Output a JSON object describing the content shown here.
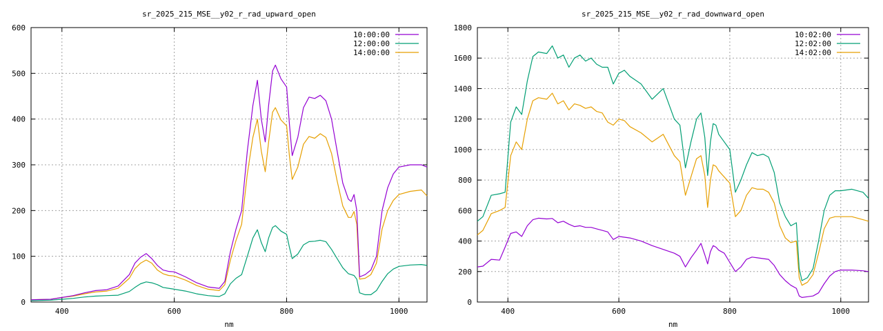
{
  "chart_data": [
    {
      "type": "line",
      "title": "sr_2025_215_MSE__y02_r_rad_upward_open",
      "xlabel": "nm",
      "ylabel": "",
      "xlim": [
        345,
        1050
      ],
      "ylim": [
        0,
        600
      ],
      "xticks": [
        400,
        600,
        800,
        1000
      ],
      "yticks": [
        0,
        100,
        200,
        300,
        400,
        500,
        600
      ],
      "grid": true,
      "legend_position": "top-right",
      "series": [
        {
          "name": "10:00:00",
          "color": "#9400d3",
          "x": [
            345,
            380,
            400,
            420,
            440,
            460,
            480,
            500,
            520,
            530,
            540,
            550,
            560,
            570,
            580,
            590,
            600,
            620,
            640,
            660,
            680,
            690,
            700,
            710,
            720,
            730,
            740,
            748,
            755,
            762,
            768,
            775,
            780,
            790,
            800,
            805,
            810,
            820,
            830,
            840,
            850,
            860,
            870,
            880,
            890,
            900,
            910,
            915,
            920,
            925,
            930,
            940,
            950,
            960,
            970,
            980,
            990,
            1000,
            1020,
            1040,
            1050
          ],
          "y": [
            5,
            6,
            10,
            14,
            20,
            25,
            27,
            35,
            60,
            85,
            98,
            106,
            95,
            80,
            70,
            67,
            66,
            55,
            42,
            33,
            30,
            45,
            110,
            160,
            200,
            330,
            430,
            485,
            400,
            350,
            430,
            505,
            518,
            488,
            470,
            390,
            320,
            360,
            425,
            448,
            445,
            452,
            440,
            400,
            330,
            260,
            225,
            220,
            235,
            200,
            55,
            60,
            70,
            100,
            200,
            250,
            280,
            295,
            300,
            300,
            295
          ]
        },
        {
          "name": "12:00:00",
          "color": "#009e73",
          "x": [
            345,
            380,
            400,
            420,
            440,
            460,
            480,
            500,
            520,
            530,
            540,
            550,
            560,
            570,
            580,
            590,
            600,
            620,
            640,
            660,
            680,
            690,
            700,
            710,
            720,
            730,
            740,
            748,
            755,
            762,
            768,
            775,
            780,
            790,
            800,
            805,
            810,
            820,
            830,
            840,
            850,
            860,
            870,
            880,
            890,
            900,
            910,
            915,
            920,
            925,
            930,
            940,
            950,
            960,
            970,
            980,
            990,
            1000,
            1020,
            1040,
            1050
          ],
          "y": [
            3,
            4,
            6,
            8,
            11,
            13,
            14,
            15,
            23,
            32,
            40,
            44,
            42,
            38,
            32,
            30,
            28,
            24,
            18,
            14,
            12,
            18,
            40,
            52,
            60,
            100,
            140,
            158,
            130,
            110,
            140,
            163,
            167,
            155,
            148,
            120,
            95,
            105,
            125,
            132,
            133,
            135,
            132,
            115,
            95,
            75,
            62,
            60,
            58,
            50,
            20,
            16,
            16,
            25,
            45,
            62,
            72,
            78,
            81,
            82,
            80
          ]
        },
        {
          "name": "14:00:00",
          "color": "#e69f00",
          "x": [
            345,
            380,
            400,
            420,
            440,
            460,
            480,
            500,
            520,
            530,
            540,
            550,
            560,
            570,
            580,
            590,
            600,
            620,
            640,
            660,
            680,
            690,
            700,
            710,
            720,
            730,
            740,
            748,
            755,
            762,
            768,
            775,
            780,
            790,
            800,
            805,
            810,
            820,
            830,
            840,
            850,
            860,
            870,
            880,
            890,
            900,
            910,
            915,
            920,
            925,
            930,
            940,
            950,
            960,
            970,
            980,
            990,
            1000,
            1020,
            1040,
            1050
          ],
          "y": [
            5,
            6,
            10,
            13,
            18,
            22,
            24,
            30,
            52,
            73,
            85,
            92,
            85,
            70,
            62,
            58,
            57,
            48,
            36,
            28,
            25,
            38,
            92,
            135,
            170,
            280,
            360,
            400,
            330,
            285,
            350,
            415,
            425,
            398,
            385,
            320,
            268,
            295,
            345,
            362,
            358,
            368,
            360,
            325,
            265,
            210,
            185,
            185,
            198,
            170,
            50,
            52,
            60,
            85,
            160,
            200,
            222,
            235,
            242,
            245,
            232
          ]
        }
      ]
    },
    {
      "type": "line",
      "title": "sr_2025_215_MSE__y02_r_rad_downward_open",
      "xlabel": "nm",
      "ylabel": "",
      "xlim": [
        345,
        1050
      ],
      "ylim": [
        0,
        1800
      ],
      "xticks": [
        400,
        600,
        800,
        1000
      ],
      "yticks": [
        0,
        200,
        400,
        600,
        800,
        1000,
        1200,
        1400,
        1600,
        1800
      ],
      "grid": true,
      "legend_position": "top-right",
      "series": [
        {
          "name": "10:02:00",
          "color": "#9400d3",
          "x": [
            345,
            355,
            370,
            385,
            395,
            405,
            415,
            425,
            435,
            445,
            455,
            470,
            480,
            490,
            500,
            510,
            520,
            530,
            540,
            550,
            560,
            570,
            580,
            590,
            600,
            610,
            620,
            640,
            660,
            680,
            700,
            710,
            720,
            730,
            740,
            748,
            755,
            760,
            765,
            770,
            775,
            780,
            790,
            800,
            810,
            820,
            830,
            840,
            850,
            860,
            870,
            880,
            890,
            900,
            910,
            920,
            925,
            930,
            940,
            950,
            960,
            970,
            980,
            990,
            1000,
            1020,
            1040,
            1050
          ],
          "y": [
            230,
            235,
            280,
            275,
            360,
            450,
            460,
            430,
            500,
            540,
            550,
            545,
            548,
            520,
            530,
            510,
            495,
            500,
            490,
            490,
            480,
            470,
            460,
            410,
            430,
            425,
            420,
            400,
            370,
            345,
            320,
            300,
            230,
            290,
            340,
            385,
            310,
            250,
            330,
            370,
            360,
            340,
            320,
            260,
            200,
            230,
            280,
            295,
            290,
            285,
            280,
            240,
            180,
            140,
            110,
            90,
            40,
            30,
            35,
            40,
            60,
            120,
            170,
            200,
            210,
            210,
            205,
            200
          ]
        },
        {
          "name": "12:02:00",
          "color": "#009e73",
          "x": [
            345,
            355,
            370,
            385,
            395,
            405,
            415,
            425,
            435,
            445,
            455,
            470,
            480,
            490,
            500,
            510,
            520,
            530,
            540,
            550,
            560,
            570,
            580,
            590,
            600,
            610,
            620,
            640,
            660,
            680,
            700,
            710,
            720,
            730,
            740,
            748,
            755,
            760,
            765,
            770,
            775,
            780,
            790,
            800,
            810,
            820,
            830,
            840,
            850,
            860,
            870,
            880,
            890,
            900,
            910,
            920,
            925,
            930,
            940,
            950,
            960,
            970,
            980,
            990,
            1000,
            1020,
            1040,
            1050
          ],
          "y": [
            530,
            560,
            700,
            710,
            720,
            1180,
            1280,
            1230,
            1450,
            1610,
            1640,
            1630,
            1680,
            1600,
            1620,
            1540,
            1600,
            1620,
            1580,
            1600,
            1560,
            1540,
            1540,
            1430,
            1500,
            1520,
            1480,
            1430,
            1330,
            1400,
            1200,
            1160,
            880,
            1050,
            1200,
            1240,
            1080,
            830,
            1050,
            1170,
            1160,
            1100,
            1050,
            1000,
            720,
            800,
            900,
            980,
            960,
            970,
            950,
            850,
            650,
            560,
            500,
            520,
            220,
            140,
            160,
            220,
            400,
            600,
            700,
            730,
            730,
            740,
            720,
            680
          ]
        },
        {
          "name": "14:02:00",
          "color": "#e69f00",
          "x": [
            345,
            355,
            370,
            385,
            395,
            405,
            415,
            425,
            435,
            445,
            455,
            470,
            480,
            490,
            500,
            510,
            520,
            530,
            540,
            550,
            560,
            570,
            580,
            590,
            600,
            610,
            620,
            640,
            660,
            680,
            700,
            710,
            720,
            730,
            740,
            748,
            755,
            760,
            765,
            770,
            775,
            780,
            790,
            800,
            810,
            820,
            830,
            840,
            850,
            860,
            870,
            880,
            890,
            900,
            910,
            920,
            925,
            930,
            940,
            950,
            960,
            970,
            980,
            990,
            1000,
            1020,
            1040,
            1050
          ],
          "y": [
            440,
            470,
            580,
            600,
            620,
            960,
            1050,
            1000,
            1200,
            1320,
            1340,
            1330,
            1370,
            1300,
            1320,
            1260,
            1300,
            1290,
            1270,
            1280,
            1250,
            1240,
            1180,
            1160,
            1200,
            1190,
            1150,
            1110,
            1050,
            1100,
            960,
            920,
            700,
            820,
            940,
            960,
            830,
            620,
            800,
            900,
            890,
            860,
            820,
            780,
            560,
            600,
            700,
            750,
            740,
            740,
            720,
            650,
            500,
            420,
            390,
            400,
            160,
            110,
            130,
            180,
            320,
            480,
            550,
            560,
            560,
            560,
            540,
            530
          ]
        }
      ]
    }
  ]
}
